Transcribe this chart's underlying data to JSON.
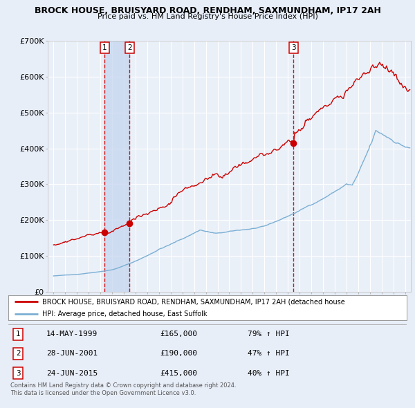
{
  "title1": "BROCK HOUSE, BRUISYARD ROAD, RENDHAM, SAXMUNDHAM, IP17 2AH",
  "title2": "Price paid vs. HM Land Registry's House Price Index (HPI)",
  "bg_color": "#e8eef8",
  "plot_bg": "#eaf0f8",
  "grid_color": "#ffffff",
  "sale_dates": [
    1999.37,
    2001.49,
    2015.48
  ],
  "sale_prices": [
    165000,
    190000,
    415000
  ],
  "sale_labels": [
    "1",
    "2",
    "3"
  ],
  "vline_color": "#cc0000",
  "shade_between": [
    1999.37,
    2001.49
  ],
  "legend_line1": "BROCK HOUSE, BRUISYARD ROAD, RENDHAM, SAXMUNDHAM, IP17 2AH (detached house",
  "legend_line2": "HPI: Average price, detached house, East Suffolk",
  "table": [
    {
      "num": "1",
      "date": "14-MAY-1999",
      "price": "£165,000",
      "pct": "79% ↑ HPI"
    },
    {
      "num": "2",
      "date": "28-JUN-2001",
      "price": "£190,000",
      "pct": "47% ↑ HPI"
    },
    {
      "num": "3",
      "date": "24-JUN-2015",
      "price": "£415,000",
      "pct": "40% ↑ HPI"
    }
  ],
  "footer": "Contains HM Land Registry data © Crown copyright and database right 2024.\nThis data is licensed under the Open Government Licence v3.0.",
  "ylim": [
    0,
    700000
  ],
  "xlim": [
    1994.5,
    2025.5
  ],
  "yticks": [
    0,
    100000,
    200000,
    300000,
    400000,
    500000,
    600000,
    700000
  ],
  "ytick_labels": [
    "£0",
    "£100K",
    "£200K",
    "£300K",
    "£400K",
    "£500K",
    "£600K",
    "£700K"
  ],
  "red_line_color": "#cc0000",
  "blue_line_color": "#7bafd4"
}
